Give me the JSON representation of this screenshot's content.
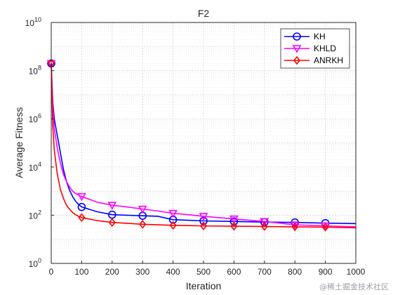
{
  "chart_data": {
    "type": "line",
    "title": "F2",
    "xlabel": "Iteration",
    "ylabel": "Average Fitness",
    "yscale": "log",
    "xlim": [
      0,
      1000
    ],
    "ylim": [
      1,
      10000000000
    ],
    "x_ticks": [
      "0",
      "100",
      "200",
      "300",
      "400",
      "500",
      "600",
      "700",
      "800",
      "900",
      "1000"
    ],
    "y_ticks": [
      {
        "base": "10",
        "exp": "0"
      },
      {
        "base": "10",
        "exp": "2"
      },
      {
        "base": "10",
        "exp": "4"
      },
      {
        "base": "10",
        "exp": "6"
      },
      {
        "base": "10",
        "exp": "8"
      },
      {
        "base": "10",
        "exp": "10"
      }
    ],
    "grid": true,
    "legend_position": "top-right",
    "series": [
      {
        "name": "KH",
        "color": "#0000ff",
        "marker": "circle",
        "x": [
          0,
          5,
          10,
          20,
          30,
          40,
          50,
          60,
          70,
          80,
          90,
          100,
          150,
          200,
          250,
          300,
          350,
          400,
          450,
          500,
          600,
          700,
          800,
          900,
          1000
        ],
        "y": [
          200000000,
          5000000,
          1000000,
          200000,
          40000,
          8000,
          2500,
          1100,
          600,
          380,
          280,
          220,
          140,
          105,
          100,
          95,
          90,
          65,
          62,
          58,
          55,
          52,
          50,
          47,
          45
        ]
      },
      {
        "name": "KHLD",
        "color": "#ff00ff",
        "marker": "triangle-down",
        "x": [
          0,
          5,
          10,
          20,
          30,
          40,
          50,
          60,
          70,
          80,
          90,
          100,
          150,
          200,
          250,
          300,
          350,
          400,
          450,
          500,
          600,
          700,
          800,
          900,
          1000
        ],
        "y": [
          200000000,
          3000000,
          400000,
          60000,
          15000,
          5000,
          2500,
          1500,
          1000,
          800,
          680,
          600,
          350,
          260,
          220,
          180,
          150,
          120,
          105,
          90,
          70,
          55,
          40,
          36,
          33
        ]
      },
      {
        "name": "ANRKH",
        "color": "#ff0000",
        "marker": "diamond",
        "x": [
          0,
          5,
          10,
          20,
          30,
          40,
          50,
          60,
          70,
          80,
          90,
          100,
          150,
          200,
          250,
          300,
          350,
          400,
          450,
          500,
          600,
          700,
          800,
          900,
          1000
        ],
        "y": [
          200000000,
          500000,
          50000,
          5000,
          1200,
          500,
          260,
          180,
          130,
          105,
          90,
          80,
          60,
          50,
          46,
          42,
          40,
          38,
          37,
          36,
          35,
          34,
          33,
          32,
          30
        ]
      }
    ],
    "marker_x": [
      0,
      100,
      200,
      300,
      400,
      500,
      600,
      700,
      800,
      900
    ]
  },
  "watermark": "@稀土掘金技术社区"
}
